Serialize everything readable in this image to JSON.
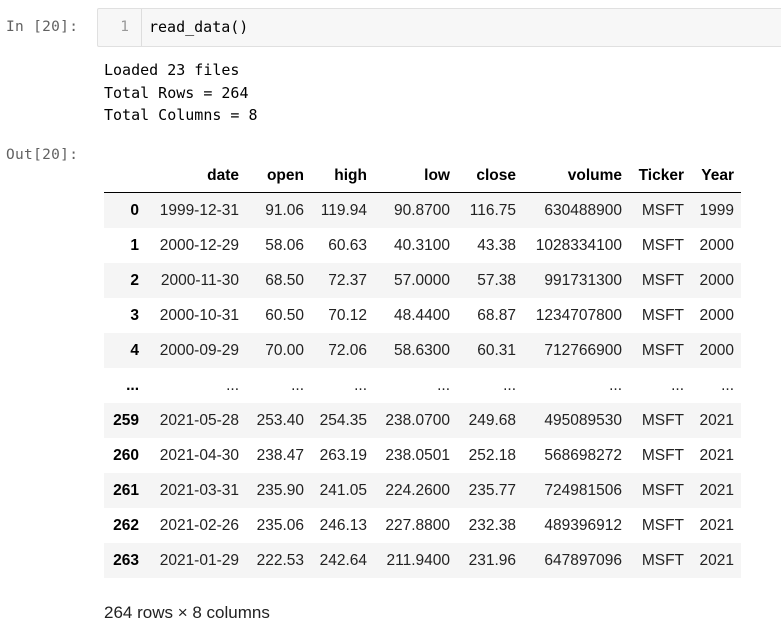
{
  "cell": {
    "in_prompt": "In [20]:",
    "out_prompt": "Out[20]:",
    "line_number": "1",
    "code": "read_data()"
  },
  "stdout": [
    "Loaded 23 files",
    "Total Rows = 264",
    "Total Columns = 8"
  ],
  "table": {
    "columns": [
      "",
      "date",
      "open",
      "high",
      "low",
      "close",
      "volume",
      "Ticker",
      "Year"
    ],
    "rows": [
      [
        "0",
        "1999-12-31",
        "91.06",
        "119.94",
        "90.8700",
        "116.75",
        "630488900",
        "MSFT",
        "1999"
      ],
      [
        "1",
        "2000-12-29",
        "58.06",
        "60.63",
        "40.3100",
        "43.38",
        "1028334100",
        "MSFT",
        "2000"
      ],
      [
        "2",
        "2000-11-30",
        "68.50",
        "72.37",
        "57.0000",
        "57.38",
        "991731300",
        "MSFT",
        "2000"
      ],
      [
        "3",
        "2000-10-31",
        "60.50",
        "70.12",
        "48.4400",
        "68.87",
        "1234707800",
        "MSFT",
        "2000"
      ],
      [
        "4",
        "2000-09-29",
        "70.00",
        "72.06",
        "58.6300",
        "60.31",
        "712766900",
        "MSFT",
        "2000"
      ],
      [
        "...",
        "...",
        "...",
        "...",
        "...",
        "...",
        "...",
        "...",
        "..."
      ],
      [
        "259",
        "2021-05-28",
        "253.40",
        "254.35",
        "238.0700",
        "249.68",
        "495089530",
        "MSFT",
        "2021"
      ],
      [
        "260",
        "2021-04-30",
        "238.47",
        "263.19",
        "238.0501",
        "252.18",
        "568698272",
        "MSFT",
        "2021"
      ],
      [
        "261",
        "2021-03-31",
        "235.90",
        "241.05",
        "224.2600",
        "235.77",
        "724981506",
        "MSFT",
        "2021"
      ],
      [
        "262",
        "2021-02-26",
        "235.06",
        "246.13",
        "227.8800",
        "232.38",
        "489396912",
        "MSFT",
        "2021"
      ],
      [
        "263",
        "2021-01-29",
        "222.53",
        "242.64",
        "211.9400",
        "231.96",
        "647897096",
        "MSFT",
        "2021"
      ]
    ]
  },
  "shape_text": "264 rows × 8 columns"
}
